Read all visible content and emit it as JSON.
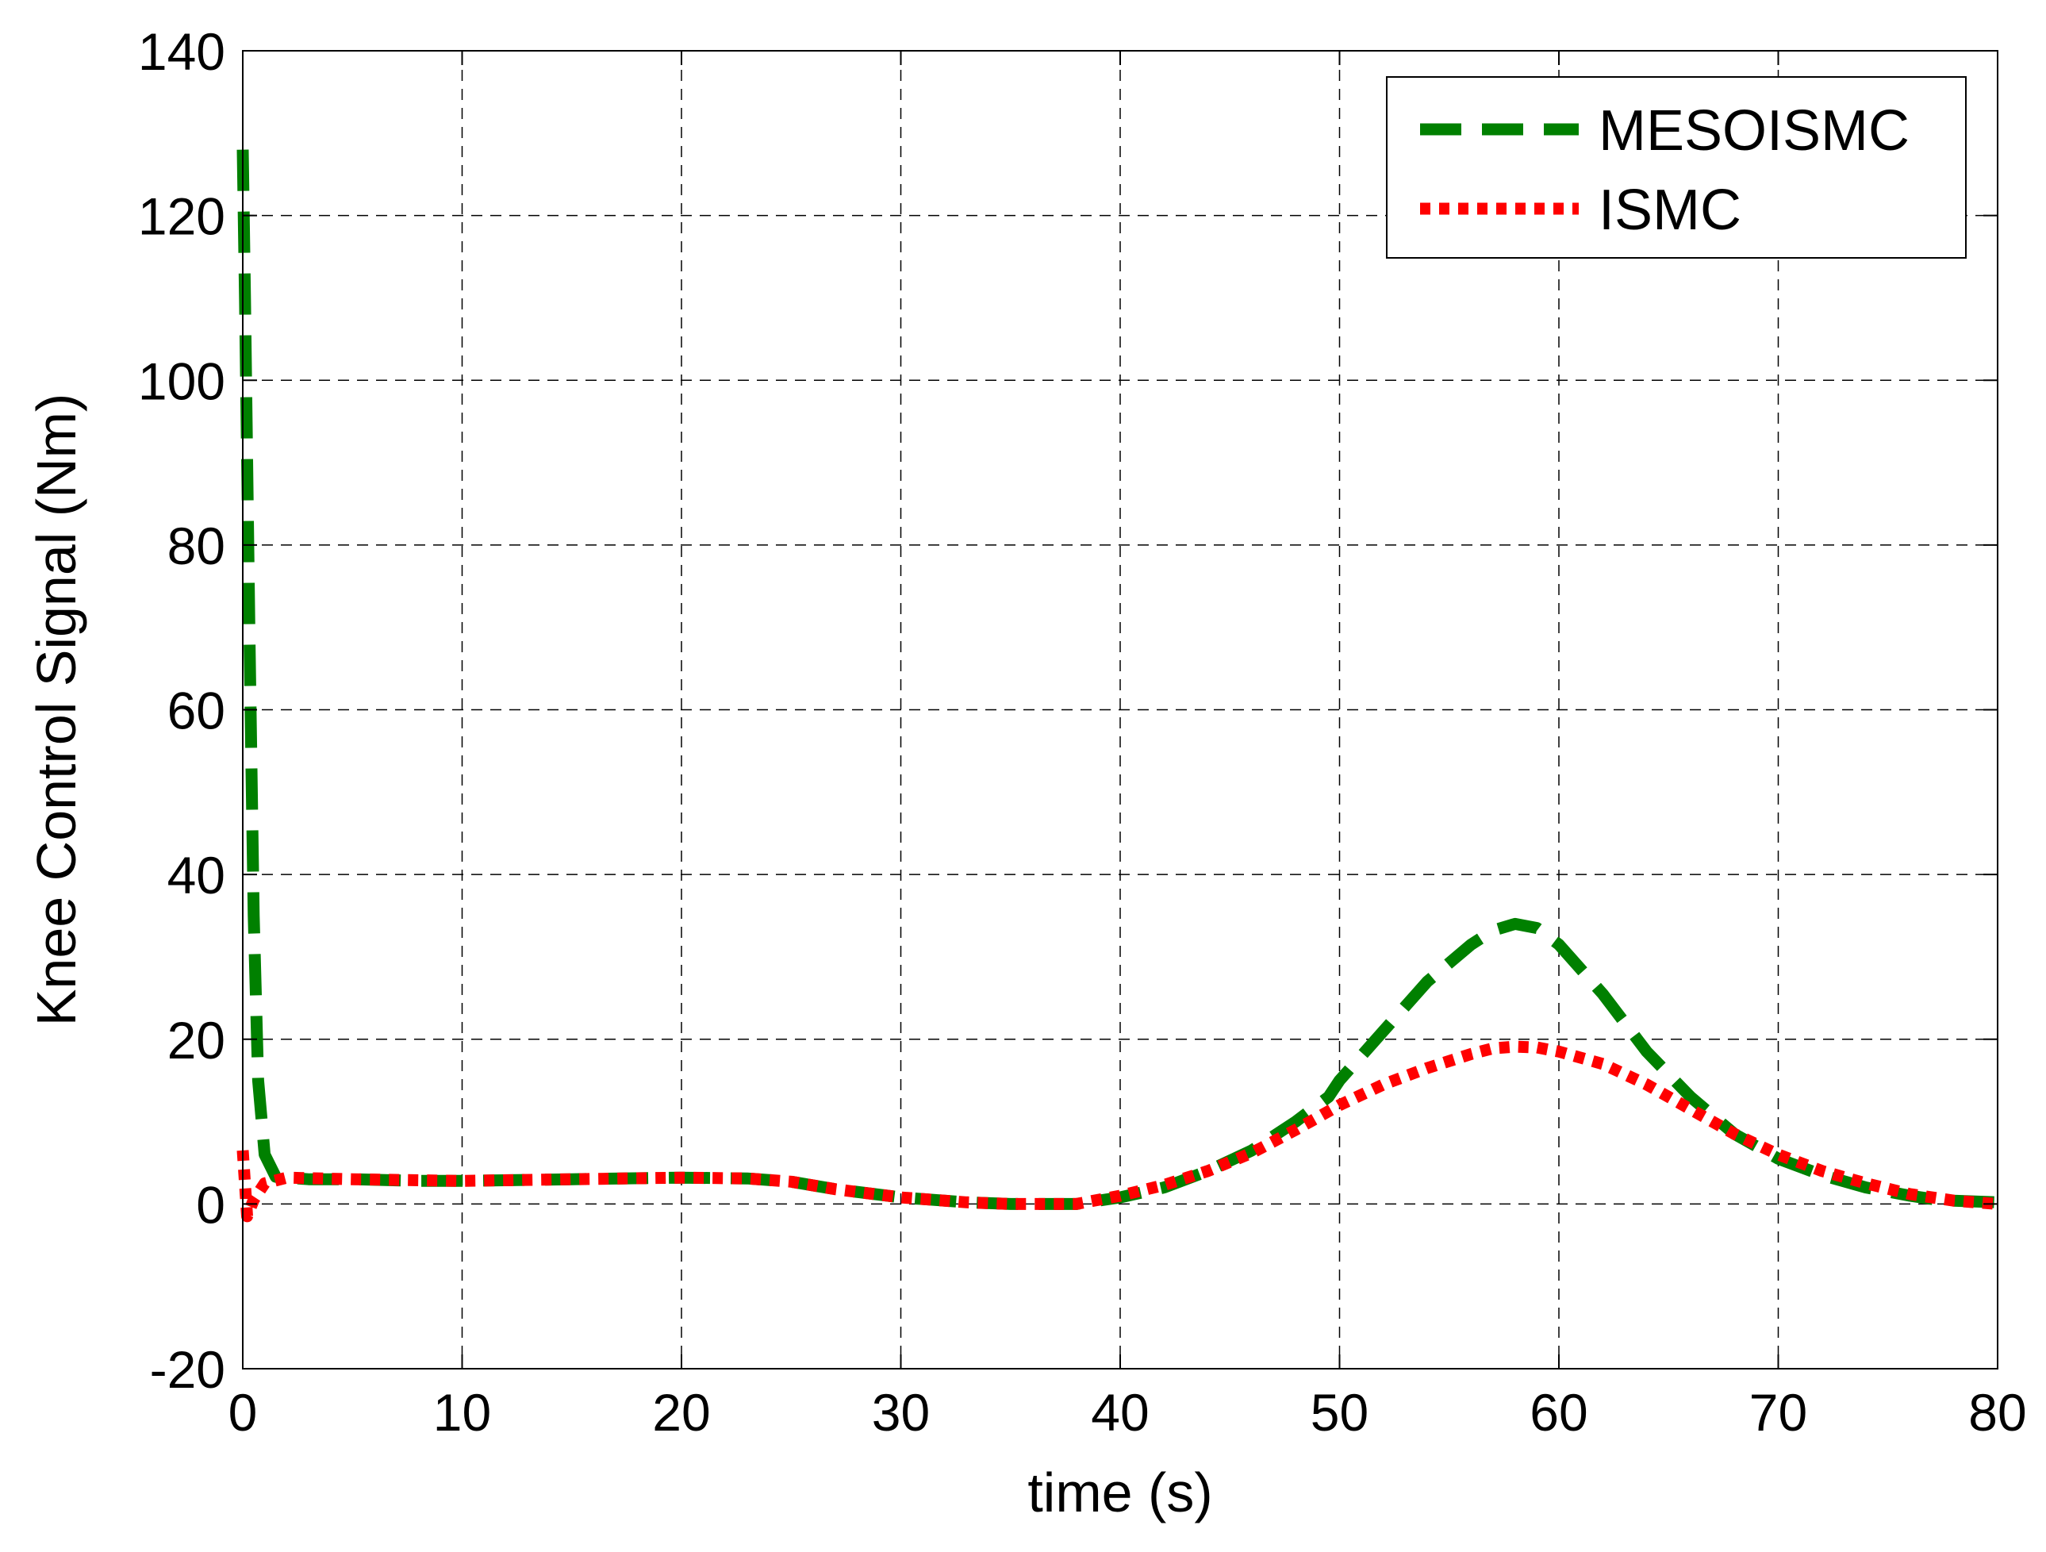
{
  "chart_data": {
    "type": "line",
    "title": "",
    "xlabel": "time (s)",
    "ylabel": "Knee Control Signal (Nm)",
    "xlim": [
      0,
      80
    ],
    "ylim": [
      -20,
      140
    ],
    "xticks": [
      0,
      10,
      20,
      30,
      40,
      50,
      60,
      70,
      80
    ],
    "yticks": [
      -20,
      0,
      20,
      40,
      60,
      80,
      100,
      120,
      140
    ],
    "xtick_labels": [
      "0",
      "10",
      "20",
      "30",
      "40",
      "50",
      "60",
      "70",
      "80"
    ],
    "ytick_labels": [
      "-20",
      "0",
      "20",
      "40",
      "60",
      "80",
      "100",
      "120",
      "140"
    ],
    "grid": true,
    "legend": {
      "position": "top-right"
    },
    "series": [
      {
        "name": "MESOISMC",
        "color": "#008000",
        "style": "dashed",
        "x": [
          0,
          0.1,
          0.3,
          0.5,
          0.7,
          1.0,
          1.5,
          3,
          5,
          8,
          10,
          15,
          20,
          23,
          25,
          27,
          30,
          33,
          35,
          38,
          40,
          42,
          44,
          46,
          48,
          49.5,
          50,
          52,
          54,
          56,
          57,
          58,
          59,
          60,
          62,
          64,
          66,
          68,
          70,
          72,
          74,
          76,
          77,
          78,
          80
        ],
        "y": [
          128,
          110,
          70,
          35,
          15,
          6,
          3.3,
          3,
          3,
          2.8,
          2.8,
          3,
          3.2,
          3.1,
          2.7,
          1.8,
          0.8,
          0.2,
          0,
          0,
          0.8,
          2,
          4,
          6.5,
          10,
          13,
          15,
          21,
          27,
          31.5,
          33.2,
          34,
          33.5,
          31.5,
          25.5,
          18.5,
          13,
          8.5,
          5.5,
          3.5,
          2,
          1,
          0.6,
          0.4,
          0.2
        ]
      },
      {
        "name": "ISMC",
        "color": "#ff0000",
        "style": "dotted",
        "x": [
          0,
          0.2,
          0.5,
          1.0,
          2,
          5,
          10,
          15,
          20,
          23,
          25,
          27,
          30,
          33,
          35,
          38,
          40,
          42,
          44,
          46,
          48,
          50,
          52,
          54,
          56,
          57,
          58,
          59,
          60,
          62,
          64,
          66,
          68,
          70,
          72,
          74,
          76,
          78,
          80
        ],
        "y": [
          6.5,
          -1.5,
          0.5,
          2.5,
          3.2,
          3,
          2.8,
          3,
          3.2,
          3.1,
          2.7,
          1.8,
          0.8,
          0.2,
          0,
          0,
          1,
          2.3,
          4,
          6.2,
          9,
          12,
          14.5,
          16.5,
          18.2,
          18.9,
          19.1,
          19,
          18.5,
          17,
          14.5,
          11.5,
          8.5,
          6,
          4,
          2.5,
          1.2,
          0.4,
          0
        ]
      }
    ]
  }
}
